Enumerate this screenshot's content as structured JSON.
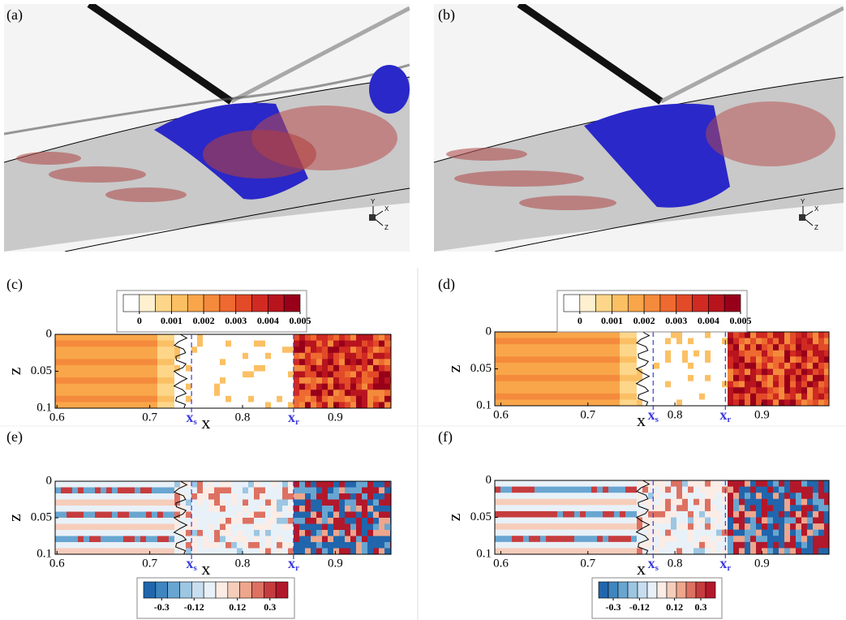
{
  "panels": [
    {
      "label": "(a)",
      "triad": [
        "Y",
        "X",
        "Z"
      ]
    },
    {
      "label": "(b)",
      "triad": [
        "Y",
        "X",
        "Z"
      ]
    },
    {
      "label": "(c)",
      "xlabel": "x",
      "ylabel": "z",
      "xlim": [
        0.598,
        0.96
      ],
      "ylim": [
        0,
        0.1
      ],
      "xticks": [
        0.6,
        0.7,
        0.8,
        0.9
      ],
      "yticks": [
        0,
        0.05,
        0.1
      ],
      "markers": [
        {
          "symbol": "x",
          "subscript": "s",
          "x": 0.745
        },
        {
          "symbol": "x",
          "subscript": "r",
          "x": 0.855
        }
      ],
      "colorbar": {
        "clim": [
          -0.0005,
          0.005
        ],
        "ticks": [
          0,
          0.001,
          0.002,
          0.003,
          0.004,
          0.005
        ],
        "colors": [
          "#ffffff",
          "#fff0d0",
          "#fdd68a",
          "#fbc064",
          "#f9a64a",
          "#f48a3c",
          "#ee6a30",
          "#e24a28",
          "#d02a22",
          "#b8141e",
          "#98001a"
        ]
      }
    },
    {
      "label": "(d)",
      "xlabel": "x",
      "ylabel": "z",
      "xlim": [
        0.593,
        0.977
      ],
      "ylim": [
        0,
        0.1
      ],
      "xticks": [
        0.6,
        0.7,
        0.8,
        0.9
      ],
      "yticks": [
        0,
        0.05,
        0.1
      ],
      "markers": [
        {
          "symbol": "x",
          "subscript": "s",
          "x": 0.775
        },
        {
          "symbol": "x",
          "subscript": "r",
          "x": 0.858
        }
      ],
      "colorbar": {
        "clim": [
          -0.0005,
          0.005
        ],
        "ticks": [
          0,
          0.001,
          0.002,
          0.003,
          0.004,
          0.005
        ],
        "colors": [
          "#ffffff",
          "#fff0d0",
          "#fdd68a",
          "#fbc064",
          "#f9a64a",
          "#f48a3c",
          "#ee6a30",
          "#e24a28",
          "#d02a22",
          "#b8141e",
          "#98001a"
        ]
      }
    },
    {
      "label": "(e)",
      "xlabel": "x",
      "ylabel": "z",
      "xlim": [
        0.598,
        0.96
      ],
      "ylim": [
        0,
        0.1
      ],
      "xticks": [
        0.6,
        0.7,
        0.8,
        0.9
      ],
      "yticks": [
        0,
        0.05,
        0.1
      ],
      "markers": [
        {
          "symbol": "x",
          "subscript": "s",
          "x": 0.745
        },
        {
          "symbol": "x",
          "subscript": "r",
          "x": 0.855
        }
      ],
      "colorbar": {
        "clim": [
          -0.4,
          0.4
        ],
        "ticks": [
          -0.3,
          -0.12,
          0.12,
          0.3
        ],
        "colors": [
          "#2166ac",
          "#3f86c0",
          "#68a6d1",
          "#9cc6e2",
          "#c8def0",
          "#e8f1f8",
          "#fbece6",
          "#f6cdbb",
          "#eea68c",
          "#dd7162",
          "#c63c3e",
          "#b2182b"
        ]
      }
    },
    {
      "label": "(f)",
      "xlabel": "x",
      "ylabel": "z",
      "xlim": [
        0.593,
        0.977
      ],
      "ylim": [
        0,
        0.1
      ],
      "xticks": [
        0.6,
        0.7,
        0.8,
        0.9
      ],
      "yticks": [
        0,
        0.05,
        0.1
      ],
      "markers": [
        {
          "symbol": "x",
          "subscript": "s",
          "x": 0.775
        },
        {
          "symbol": "x",
          "subscript": "r",
          "x": 0.858
        }
      ],
      "colorbar": {
        "clim": [
          -0.4,
          0.4
        ],
        "ticks": [
          -0.3,
          -0.12,
          0.12,
          0.3
        ],
        "colors": [
          "#2166ac",
          "#3f86c0",
          "#68a6d1",
          "#9cc6e2",
          "#c8def0",
          "#e8f1f8",
          "#fbece6",
          "#f6cdbb",
          "#eea68c",
          "#dd7162",
          "#c63c3e",
          "#b2182b"
        ]
      }
    }
  ]
}
